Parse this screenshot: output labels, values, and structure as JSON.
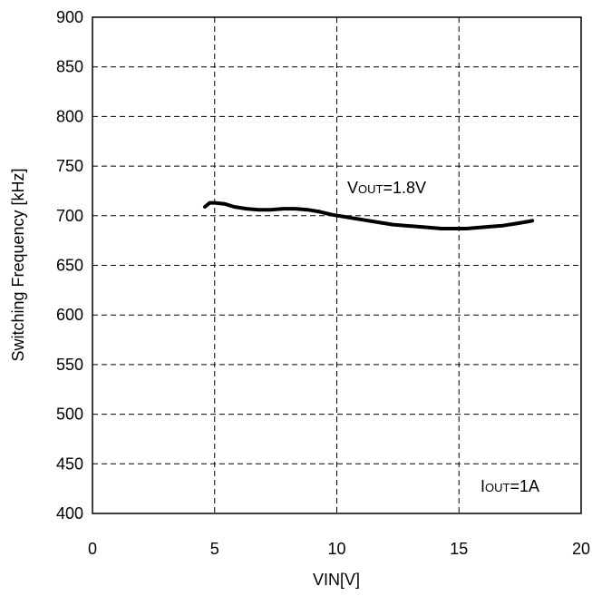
{
  "chart_data": {
    "type": "line",
    "xlabel": "VIN[V]",
    "ylabel": "Switching Frequency [kHz]",
    "xlim": [
      0,
      20
    ],
    "ylim": [
      400,
      900
    ],
    "x_ticks": [
      "0",
      "5",
      "10",
      "15",
      "20"
    ],
    "y_ticks": [
      "400",
      "450",
      "500",
      "550",
      "600",
      "650",
      "700",
      "750",
      "800",
      "850",
      "900"
    ],
    "grid": "dashed",
    "series": [
      {
        "color": "#000000",
        "x": [
          4.6,
          4.8,
          5.0,
          5.4,
          5.8,
          6.3,
          6.8,
          7.3,
          7.8,
          8.3,
          8.8,
          9.3,
          9.8,
          10.3,
          10.8,
          11.3,
          11.8,
          12.3,
          12.8,
          13.3,
          13.8,
          14.3,
          14.8,
          15.3,
          15.8,
          16.3,
          16.8,
          17.3,
          17.8,
          18.0
        ],
        "y": [
          709,
          713,
          713,
          712,
          709,
          707,
          706,
          706,
          707,
          707,
          706,
          704,
          701,
          699,
          697,
          695,
          693,
          691,
          690,
          689,
          688,
          687,
          687,
          687,
          688,
          689,
          690,
          692,
          694,
          695
        ]
      }
    ],
    "annotations": [
      {
        "main": "V",
        "sub": "OUT",
        "rest": "=1.8V"
      },
      {
        "main": "I",
        "sub": "OUT",
        "rest": "=1A"
      }
    ]
  }
}
